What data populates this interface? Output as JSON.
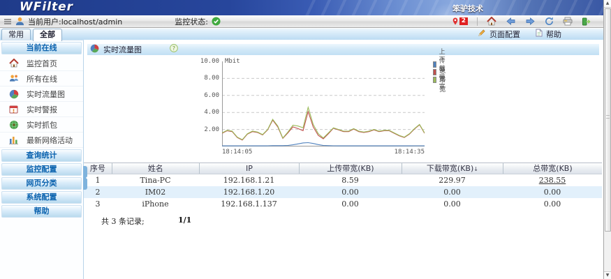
{
  "banner": {
    "logo": "WFilter",
    "brand": "笨驴技术"
  },
  "toolbar": {
    "current_user_label": "当前用户:localhost/admin",
    "status_label": "监控状态:",
    "alert_count": "2"
  },
  "actionbar": {
    "page_config_label": "页面配置",
    "help_label": "帮助"
  },
  "sidebar": {
    "tabs": [
      {
        "label": "常用",
        "active": false
      },
      {
        "label": "全部",
        "active": true
      }
    ],
    "sections": [
      {
        "label": "当前在线",
        "expanded": true,
        "items": [
          {
            "label": "监控首页",
            "icon": "home"
          },
          {
            "label": "所有在线",
            "icon": "users"
          },
          {
            "label": "实时流量图",
            "icon": "pie"
          },
          {
            "label": "实时警报",
            "icon": "alert-calendar"
          },
          {
            "label": "实时抓包",
            "icon": "globe"
          },
          {
            "label": "最新网络活动",
            "icon": "bars"
          }
        ]
      },
      {
        "label": "查询统计",
        "expanded": false,
        "items": []
      },
      {
        "label": "监控配置",
        "expanded": false,
        "items": []
      },
      {
        "label": "网页分类",
        "expanded": false,
        "items": []
      },
      {
        "label": "系统配置",
        "expanded": false,
        "items": []
      },
      {
        "label": "帮助",
        "expanded": false,
        "items": []
      }
    ]
  },
  "content": {
    "title": "实时流量图",
    "table": {
      "headers": [
        "序号",
        "姓名",
        "IP",
        "上传带宽(KB)",
        "下载带宽(KB)",
        "总带宽(KB)"
      ],
      "sort_column": 4,
      "rows": [
        {
          "cells": [
            "1",
            "Tina-PC",
            "192.168.1.21",
            "8.59",
            "229.97",
            "238.55"
          ],
          "link_total": true
        },
        {
          "cells": [
            "2",
            "IM02",
            "192.168.1.20",
            "0.00",
            "0.00",
            "0.00"
          ],
          "link_total": false
        },
        {
          "cells": [
            "3",
            "iPhone",
            "192.168.1.137",
            "0.00",
            "0.00",
            "0.00"
          ],
          "link_total": false
        }
      ]
    },
    "footer": {
      "records_label": "共 3 条记录;",
      "page_indicator": "1/1"
    }
  },
  "chart_data": {
    "type": "line",
    "title": "实时流量图",
    "unit": "Mbit",
    "ylim": [
      0,
      10
    ],
    "yticks": [
      2,
      4,
      6,
      8,
      10
    ],
    "grid": "dashed-horizontal",
    "x_start_label": "18:14:05",
    "x_end_label": "18:14:35",
    "legend_position": "right",
    "series": [
      {
        "name": "上传带宽",
        "color": "#4f81bd",
        "values": [
          0.07,
          0.07,
          0.07,
          0.07,
          0.08,
          0.08,
          0.07,
          0.07,
          0.07,
          0.08,
          0.1,
          0.1,
          0.1,
          0.12,
          0.2,
          0.3,
          0.42,
          0.45,
          0.35,
          0.22,
          0.12,
          0.1,
          0.08,
          0.07,
          0.07,
          0.07,
          0.08,
          0.07,
          0.07,
          0.07,
          0.08,
          0.07,
          0.07,
          0.08,
          0.07,
          0.07,
          0.07,
          0.07,
          0.08,
          0.08,
          0.07
        ]
      },
      {
        "name": "下载带宽",
        "color": "#c0504d",
        "values": [
          1.55,
          1.85,
          1.75,
          1.05,
          0.75,
          1.45,
          1.75,
          1.65,
          1.35,
          1.95,
          3.1,
          2.3,
          0.95,
          1.6,
          2.3,
          2.1,
          1.85,
          4.1,
          2.3,
          1.3,
          0.9,
          1.5,
          2.15,
          1.95,
          1.75,
          1.75,
          2.05,
          1.75,
          1.65,
          1.75,
          1.95,
          1.75,
          1.85,
          1.85,
          1.55,
          1.25,
          1.05,
          1.45,
          2.05,
          2.55,
          1.55
        ]
      },
      {
        "name": "总带宽",
        "color": "#9bbb59",
        "values": [
          1.6,
          1.9,
          1.8,
          1.1,
          0.8,
          1.5,
          1.8,
          1.7,
          1.4,
          2.0,
          3.2,
          2.4,
          1.0,
          1.7,
          2.5,
          2.4,
          2.2,
          4.6,
          2.6,
          1.5,
          1.0,
          1.6,
          2.2,
          2.0,
          1.8,
          1.8,
          2.1,
          1.8,
          1.7,
          1.8,
          2.0,
          1.8,
          1.9,
          1.9,
          1.6,
          1.3,
          1.1,
          1.5,
          2.1,
          2.6,
          1.6
        ]
      }
    ]
  }
}
